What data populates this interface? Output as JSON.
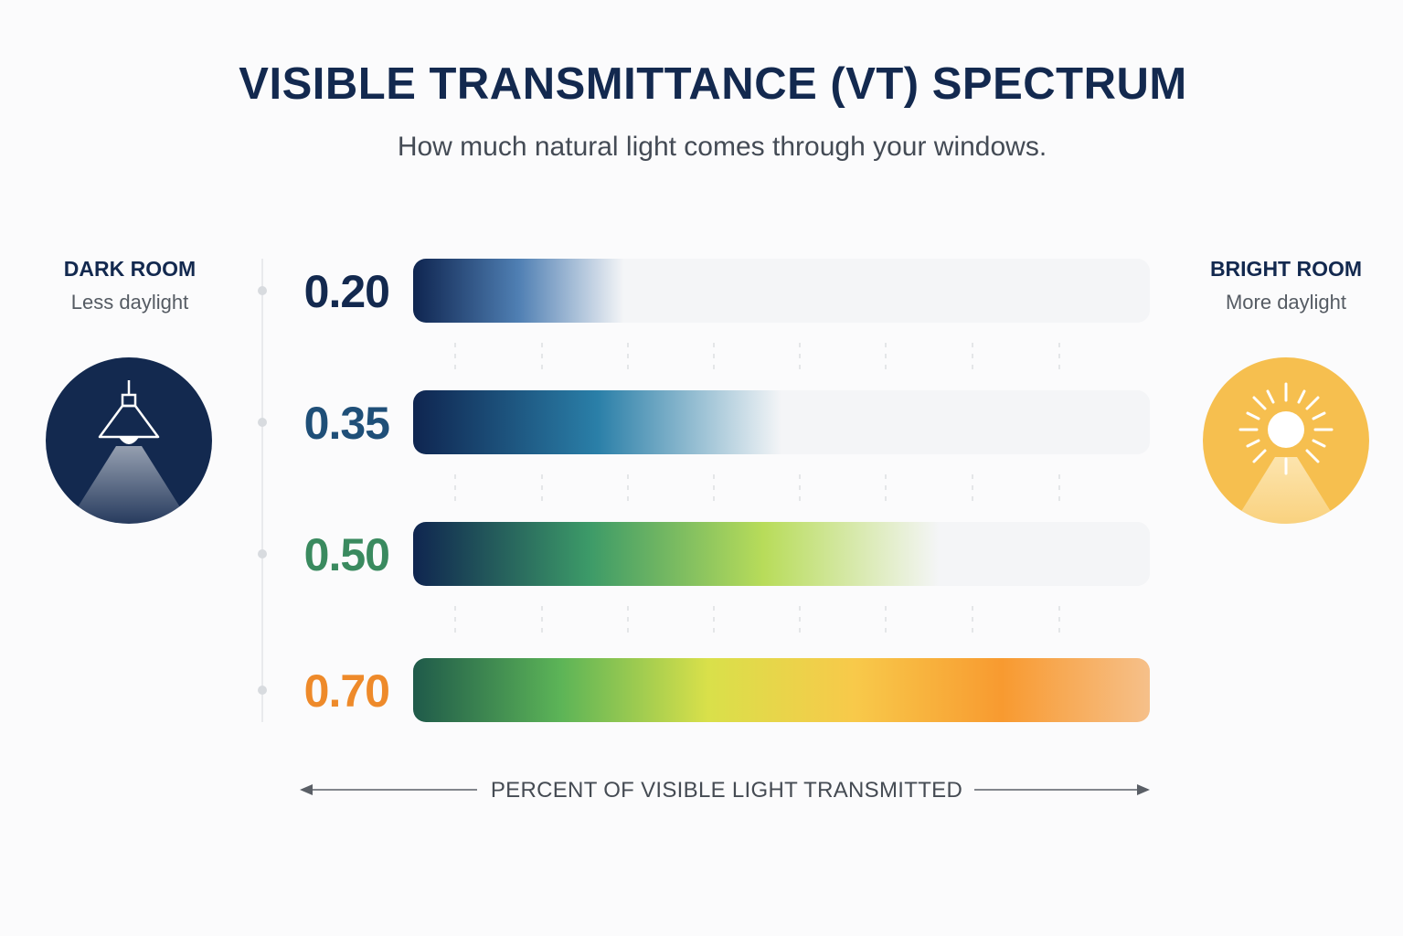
{
  "title": "VISIBLE TRANSMITTANCE (VT) SPECTRUM",
  "subtitle": "How much natural light comes through your windows.",
  "left_side": {
    "heading": "DARK ROOM",
    "sub": "Less daylight",
    "icon": "pendant-lamp-icon"
  },
  "right_side": {
    "heading": "BRIGHT ROOM",
    "sub": "More daylight",
    "icon": "sun-icon"
  },
  "axis_caption": "PERCENT OF VISIBLE LIGHT TRANSMITTED",
  "chart_data": {
    "type": "bar",
    "orientation": "horizontal",
    "categories": [
      "0.20",
      "0.35",
      "0.50",
      "0.70"
    ],
    "values": [
      0.2,
      0.35,
      0.5,
      0.7
    ],
    "label_colors": [
      "#13294f",
      "#1f4f78",
      "#3a8a5f",
      "#ee8a2a"
    ],
    "bar_gradients": [
      [
        "#0f2550",
        "#4f7fb3",
        "#f4f5f7"
      ],
      [
        "#0f2550",
        "#2a7fa8",
        "#f4f5f7"
      ],
      [
        "#0f2550",
        "#3c9a68",
        "#b8dc5a",
        "#f4f5f7"
      ],
      [
        "#1f5a4a",
        "#5cb457",
        "#d9e04a",
        "#f8c94a",
        "#f89a30",
        "#f6c08a"
      ]
    ],
    "title": "VISIBLE TRANSMITTANCE (VT) SPECTRUM",
    "xlabel": "PERCENT OF VISIBLE LIGHT TRANSMITTED",
    "grid": true
  }
}
